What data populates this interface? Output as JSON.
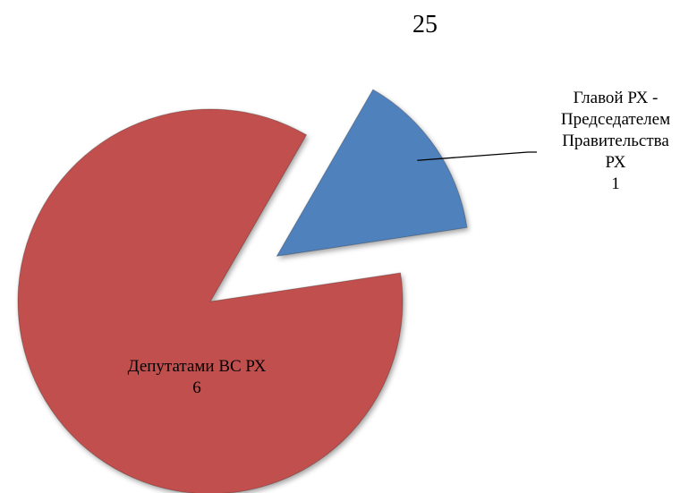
{
  "page_number": "25",
  "chart_data": {
    "type": "pie",
    "categories": [
      "Главой РХ - Председателем Правительства РХ",
      "Депутатами ВС РХ"
    ],
    "values": [
      1,
      6
    ],
    "colors": [
      "#4f81bd",
      "#c0504d"
    ]
  }
}
